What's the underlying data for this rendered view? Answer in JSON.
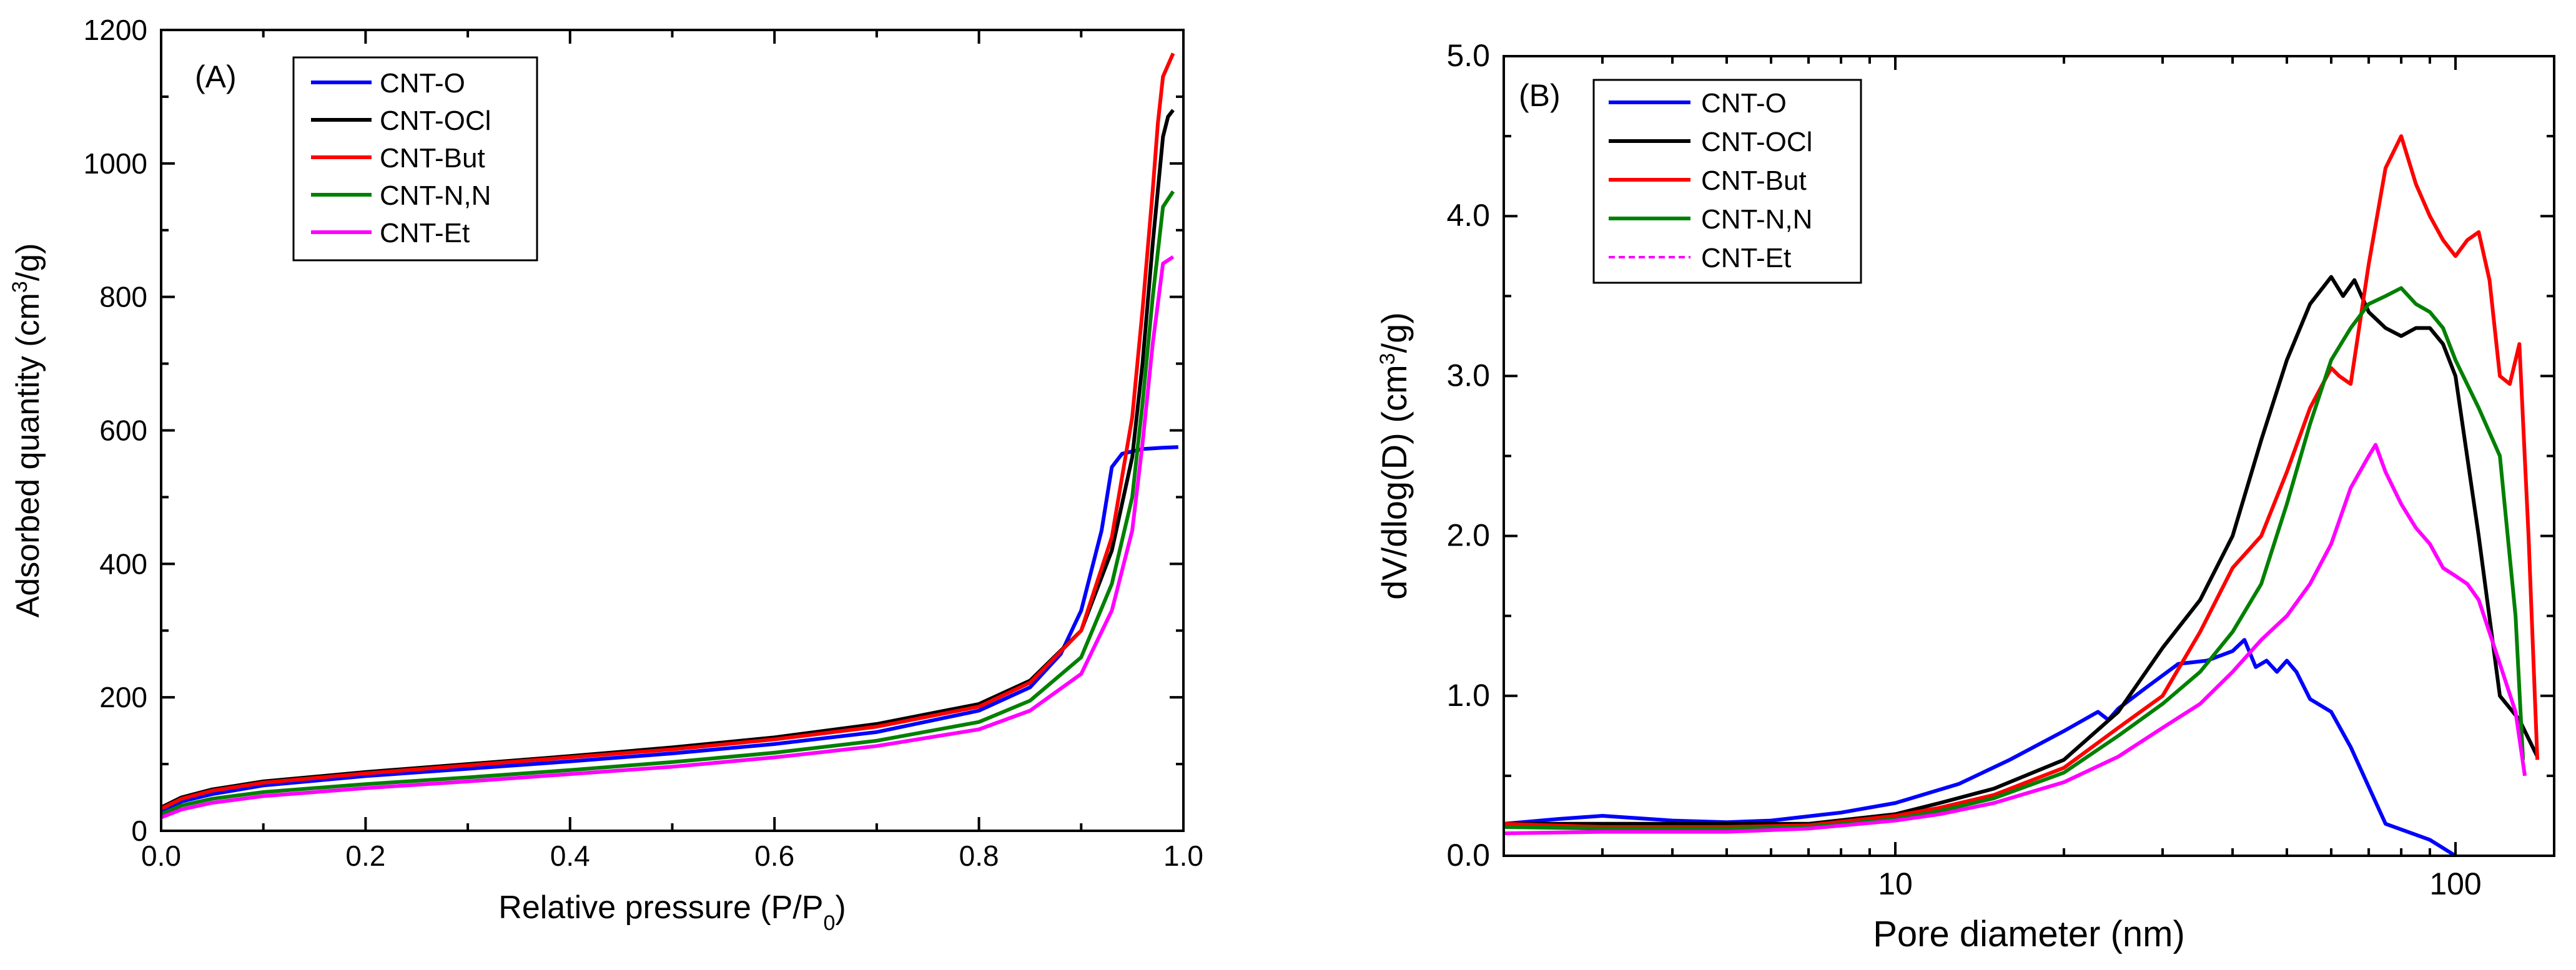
{
  "chart_data": [
    {
      "panel": "(A)",
      "type": "line",
      "xlabel": "Relative pressure (P/P0)",
      "xlabel_parts": [
        "Relative pressure (P/P",
        "0",
        ")"
      ],
      "ylabel": "Adsorbed quantity (cm3/g)",
      "ylabel_parts": [
        "Adsorbed quantity (cm",
        "3",
        "/g)"
      ],
      "xlim": [
        0,
        1.0
      ],
      "ylim": [
        0,
        1200
      ],
      "xticks": [
        0.0,
        0.2,
        0.4,
        0.6,
        0.8,
        1.0
      ],
      "xtick_labels": [
        "0.0",
        "0.2",
        "0.4",
        "0.6",
        "0.8",
        "1.0"
      ],
      "yticks": [
        0,
        200,
        400,
        600,
        800,
        1000,
        1200
      ],
      "ytick_labels": [
        "0",
        "200",
        "400",
        "600",
        "800",
        "1000",
        "1200"
      ],
      "legend_position": "top-left",
      "series": [
        {
          "name": "CNT-O",
          "color": "#0000ff",
          "x": [
            0.0,
            0.02,
            0.05,
            0.1,
            0.2,
            0.3,
            0.4,
            0.5,
            0.6,
            0.7,
            0.8,
            0.85,
            0.88,
            0.9,
            0.92,
            0.93,
            0.94,
            0.96,
            0.98,
            0.995
          ],
          "y": [
            28,
            44,
            55,
            68,
            82,
            93,
            104,
            116,
            130,
            148,
            180,
            215,
            265,
            330,
            450,
            545,
            565,
            572,
            574,
            575
          ]
        },
        {
          "name": "CNT-OCl",
          "color": "#000000",
          "x": [
            0.0,
            0.02,
            0.05,
            0.1,
            0.2,
            0.3,
            0.4,
            0.5,
            0.6,
            0.7,
            0.8,
            0.85,
            0.9,
            0.93,
            0.95,
            0.96,
            0.97,
            0.98,
            0.985,
            0.99
          ],
          "y": [
            35,
            50,
            62,
            74,
            88,
            100,
            112,
            125,
            140,
            160,
            190,
            225,
            300,
            420,
            560,
            700,
            880,
            1040,
            1070,
            1080
          ]
        },
        {
          "name": "CNT-But",
          "color": "#ff0000",
          "x": [
            0.0,
            0.02,
            0.05,
            0.1,
            0.2,
            0.3,
            0.4,
            0.5,
            0.6,
            0.7,
            0.8,
            0.85,
            0.9,
            0.93,
            0.95,
            0.96,
            0.97,
            0.975,
            0.98,
            0.99
          ],
          "y": [
            33,
            48,
            60,
            72,
            86,
            98,
            110,
            122,
            137,
            156,
            186,
            222,
            300,
            440,
            620,
            780,
            960,
            1060,
            1130,
            1165
          ]
        },
        {
          "name": "CNT-N,N",
          "color": "#008000",
          "x": [
            0.0,
            0.02,
            0.05,
            0.1,
            0.2,
            0.3,
            0.4,
            0.5,
            0.6,
            0.7,
            0.8,
            0.85,
            0.9,
            0.93,
            0.95,
            0.96,
            0.97,
            0.98,
            0.99
          ],
          "y": [
            25,
            38,
            48,
            58,
            70,
            80,
            91,
            103,
            117,
            135,
            163,
            195,
            260,
            370,
            500,
            640,
            800,
            935,
            958
          ]
        },
        {
          "name": "CNT-Et",
          "color": "#ff00ff",
          "x": [
            0.0,
            0.02,
            0.05,
            0.1,
            0.2,
            0.3,
            0.4,
            0.5,
            0.6,
            0.7,
            0.8,
            0.85,
            0.9,
            0.93,
            0.95,
            0.96,
            0.97,
            0.98,
            0.99
          ],
          "y": [
            20,
            32,
            42,
            52,
            64,
            74,
            85,
            96,
            110,
            127,
            152,
            180,
            235,
            330,
            450,
            580,
            730,
            850,
            860
          ]
        }
      ]
    },
    {
      "panel": "(B)",
      "type": "line",
      "xscale": "log",
      "xlabel": "Pore diameter (nm)",
      "ylabel": "dV/dlog(D) (cm3/g)",
      "ylabel_parts": [
        "dV/dlog(D) (cm",
        "3",
        "/g)"
      ],
      "xlim": [
        2,
        150
      ],
      "ylim": [
        0,
        5.0
      ],
      "xticks": [
        10,
        100
      ],
      "xtick_labels": [
        "10",
        "100"
      ],
      "yticks": [
        0.0,
        1.0,
        2.0,
        3.0,
        4.0,
        5.0
      ],
      "ytick_labels": [
        "0.0",
        "1.0",
        "2.0",
        "3.0",
        "4.0",
        "5.0"
      ],
      "legend_position": "top-left",
      "series": [
        {
          "name": "CNT-O",
          "color": "#0000ff",
          "style": "solid",
          "x": [
            2,
            2.5,
            3,
            4,
            5,
            6,
            8,
            10,
            13,
            16,
            20,
            23,
            24,
            25,
            28,
            32,
            36,
            40,
            42,
            44,
            46,
            48,
            50,
            52,
            55,
            60,
            65,
            75,
            90,
            100
          ],
          "y": [
            0.2,
            0.23,
            0.25,
            0.22,
            0.21,
            0.22,
            0.27,
            0.33,
            0.45,
            0.6,
            0.78,
            0.9,
            0.85,
            0.92,
            1.05,
            1.2,
            1.22,
            1.28,
            1.35,
            1.18,
            1.22,
            1.15,
            1.22,
            1.15,
            0.98,
            0.9,
            0.68,
            0.2,
            0.1,
            0.0
          ]
        },
        {
          "name": "CNT-OCl",
          "color": "#000000",
          "style": "solid",
          "x": [
            2,
            3,
            5,
            7,
            10,
            12,
            15,
            20,
            25,
            30,
            35,
            40,
            45,
            50,
            55,
            60,
            63,
            66,
            70,
            75,
            80,
            85,
            90,
            95,
            100,
            110,
            120,
            130,
            140
          ],
          "y": [
            0.2,
            0.2,
            0.2,
            0.2,
            0.26,
            0.33,
            0.42,
            0.6,
            0.9,
            1.3,
            1.6,
            2.0,
            2.6,
            3.1,
            3.45,
            3.62,
            3.5,
            3.6,
            3.4,
            3.3,
            3.25,
            3.3,
            3.3,
            3.2,
            3.0,
            2.0,
            1.0,
            0.85,
            0.62
          ]
        },
        {
          "name": "CNT-But",
          "color": "#ff0000",
          "style": "solid",
          "x": [
            2,
            3,
            5,
            7,
            10,
            12,
            15,
            20,
            25,
            30,
            35,
            40,
            45,
            50,
            55,
            60,
            62,
            65,
            70,
            75,
            80,
            85,
            90,
            95,
            100,
            105,
            110,
            115,
            120,
            125,
            130,
            135,
            140
          ],
          "y": [
            0.2,
            0.18,
            0.18,
            0.19,
            0.25,
            0.3,
            0.38,
            0.55,
            0.8,
            1.0,
            1.4,
            1.8,
            2.0,
            2.4,
            2.8,
            3.05,
            3.0,
            2.95,
            3.7,
            4.3,
            4.5,
            4.2,
            4.0,
            3.85,
            3.75,
            3.85,
            3.9,
            3.6,
            3.0,
            2.95,
            3.2,
            2.0,
            0.6
          ]
        },
        {
          "name": "CNT-N,N",
          "color": "#008000",
          "style": "solid",
          "x": [
            2,
            3,
            5,
            7,
            10,
            12,
            15,
            20,
            25,
            30,
            35,
            40,
            45,
            50,
            55,
            60,
            65,
            70,
            75,
            80,
            85,
            90,
            95,
            100,
            110,
            120,
            128,
            132
          ],
          "y": [
            0.18,
            0.17,
            0.17,
            0.18,
            0.23,
            0.28,
            0.36,
            0.52,
            0.75,
            0.95,
            1.15,
            1.4,
            1.7,
            2.2,
            2.7,
            3.1,
            3.3,
            3.45,
            3.5,
            3.55,
            3.45,
            3.4,
            3.3,
            3.1,
            2.8,
            2.5,
            1.5,
            0.6
          ]
        },
        {
          "name": "CNT-Et",
          "color": "#ff00ff",
          "style": "solid",
          "legend_style": "dashed",
          "x": [
            2,
            3,
            5,
            7,
            10,
            12,
            15,
            20,
            25,
            30,
            35,
            40,
            45,
            50,
            55,
            60,
            65,
            70,
            72,
            75,
            80,
            85,
            90,
            95,
            100,
            105,
            110,
            120,
            128,
            133
          ],
          "y": [
            0.14,
            0.15,
            0.15,
            0.17,
            0.22,
            0.26,
            0.33,
            0.46,
            0.62,
            0.8,
            0.95,
            1.15,
            1.35,
            1.5,
            1.7,
            1.95,
            2.3,
            2.5,
            2.57,
            2.4,
            2.2,
            2.05,
            1.95,
            1.8,
            1.75,
            1.7,
            1.6,
            1.2,
            0.9,
            0.5
          ]
        }
      ]
    }
  ]
}
